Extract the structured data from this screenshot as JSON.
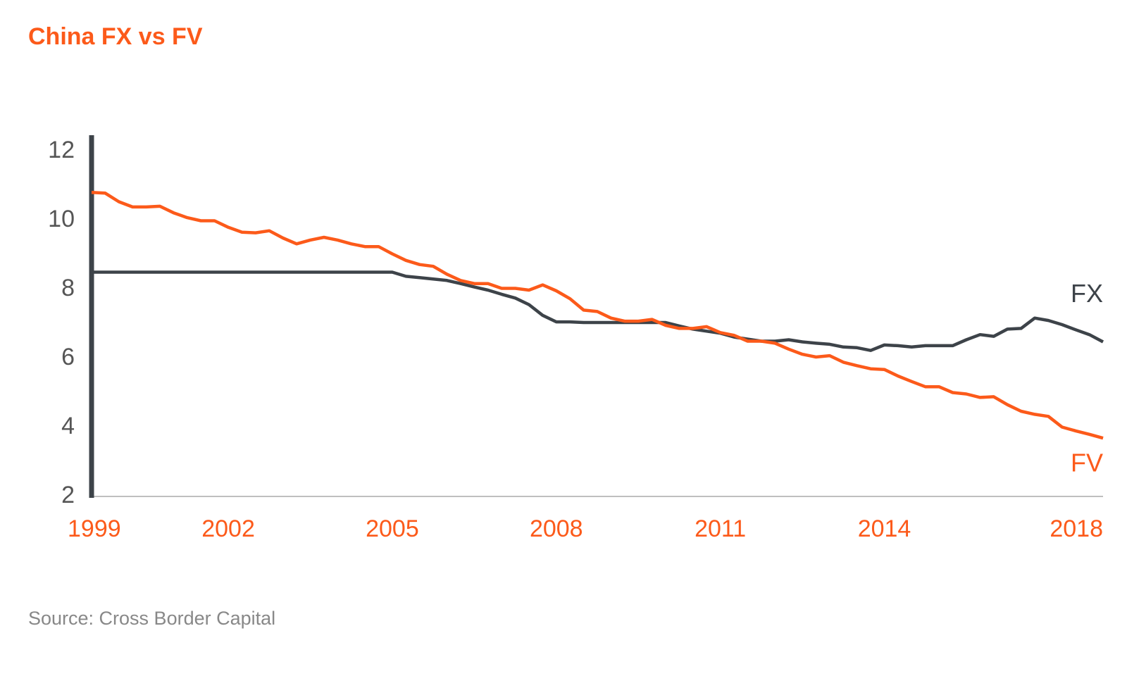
{
  "chart_data": {
    "type": "line",
    "title": "China FX vs FV",
    "source": "Source: Cross Border Capital",
    "categories": [
      "1999",
      null,
      null,
      null,
      null,
      null,
      null,
      null,
      null,
      null,
      "2002",
      null,
      null,
      null,
      null,
      null,
      null,
      null,
      null,
      null,
      null,
      null,
      "2005",
      null,
      null,
      null,
      null,
      null,
      null,
      null,
      null,
      null,
      null,
      null,
      "2008",
      null,
      null,
      null,
      null,
      null,
      null,
      null,
      null,
      null,
      null,
      null,
      "2011",
      null,
      null,
      null,
      null,
      null,
      null,
      null,
      null,
      null,
      null,
      null,
      "2014",
      null,
      null,
      null,
      null,
      null,
      null,
      null,
      null,
      null,
      null,
      null,
      null,
      null,
      null,
      null,
      "2018"
    ],
    "series": [
      {
        "name": "FX",
        "color": "#3d4349",
        "values": [
          8.5,
          8.5,
          8.5,
          8.5,
          8.5,
          8.5,
          8.5,
          8.5,
          8.5,
          8.5,
          8.5,
          8.5,
          8.5,
          8.5,
          8.5,
          8.5,
          8.5,
          8.5,
          8.5,
          8.5,
          8.5,
          8.5,
          8.5,
          8.38,
          8.34,
          8.3,
          8.26,
          8.17,
          8.07,
          7.98,
          7.86,
          7.75,
          7.56,
          7.25,
          7.06,
          7.06,
          7.04,
          7.04,
          7.04,
          7.04,
          7.04,
          7.04,
          7.04,
          6.94,
          6.85,
          6.79,
          6.73,
          6.62,
          6.56,
          6.5,
          6.5,
          6.54,
          6.48,
          6.44,
          6.41,
          6.33,
          6.31,
          6.23,
          6.39,
          6.37,
          6.33,
          6.37,
          6.37,
          6.37,
          6.54,
          6.69,
          6.64,
          6.85,
          6.87,
          7.17,
          7.1,
          6.98,
          6.83,
          6.69,
          6.48
        ]
      },
      {
        "name": "FV",
        "color": "#fc5a1a",
        "values": [
          10.81,
          10.79,
          10.54,
          10.39,
          10.39,
          10.41,
          10.22,
          10.08,
          9.99,
          9.99,
          9.8,
          9.66,
          9.64,
          9.7,
          9.49,
          9.32,
          9.43,
          9.51,
          9.43,
          9.32,
          9.24,
          9.24,
          9.03,
          8.84,
          8.72,
          8.67,
          8.44,
          8.26,
          8.17,
          8.17,
          8.03,
          8.03,
          7.98,
          8.13,
          7.96,
          7.73,
          7.4,
          7.36,
          7.17,
          7.08,
          7.08,
          7.13,
          6.96,
          6.87,
          6.87,
          6.92,
          6.75,
          6.67,
          6.5,
          6.5,
          6.44,
          6.27,
          6.12,
          6.04,
          6.08,
          5.89,
          5.79,
          5.7,
          5.68,
          5.49,
          5.33,
          5.18,
          5.18,
          5.01,
          4.97,
          4.87,
          4.89,
          4.66,
          4.47,
          4.38,
          4.32,
          4.01,
          3.9,
          3.8,
          3.69
        ]
      }
    ],
    "ylim": [
      2,
      12
    ],
    "yticks": [
      2,
      4,
      6,
      8,
      10,
      12
    ],
    "grid": false
  }
}
